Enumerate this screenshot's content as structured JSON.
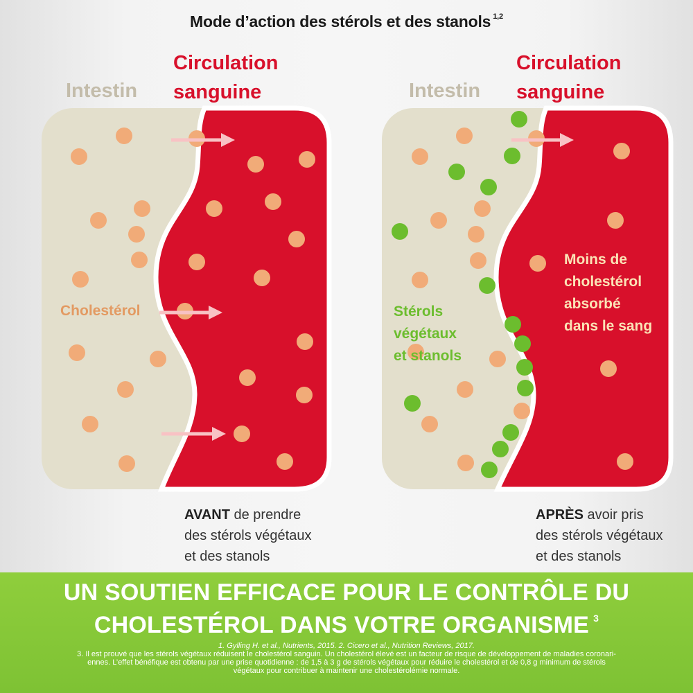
{
  "title": {
    "text": "Mode d’action des stérols et des stanols",
    "sup": "1,2"
  },
  "panels": [
    {
      "intestin": "Intestin",
      "circulation": [
        "Circulation",
        "sanguine"
      ],
      "inner_label": "Cholestérol",
      "caption": {
        "bold": "AVANT",
        "line1_rest": " de prendre",
        "line2": "des stérols végétaux",
        "line3": "et des stanols"
      }
    },
    {
      "intestin": "Intestin",
      "circulation": [
        "Circulation",
        "sanguine"
      ],
      "inner_label": [
        "Stérols",
        "végétaux",
        "et stanols"
      ],
      "right_text": [
        "Moins de",
        "cholestérol",
        "absorbé",
        "dans le sang"
      ],
      "caption": {
        "bold": "APRÈS",
        "line1_rest": " avoir pris",
        "line2": "des stérols végétaux",
        "line3": "et des stanols"
      }
    }
  ],
  "banner": {
    "line1": "UN SOUTIEN EFFICACE POUR LE CONTRÔLE DU",
    "line2": "CHOLESTÉROL DANS VOTRE ORGANISME",
    "sup": "3"
  },
  "footnotes": {
    "refs": "1. Gylling H. et al., Nutrients, 2015. 2. Cicero et al., Nutrition Reviews, 2017.",
    "note_line1": "3. Il est prouvé que les stérols végétaux réduisent le cholestérol sanguin. Un cholestérol élevé est un facteur de risque de développement de maladies coronari-",
    "note_line2": "ennes. L’effet bénéfique est obtenu par une prise quotidienne : de 1,5 à 3 g de stérols végétaux pour réduire le cholestérol et de 0,8 g minimum de stérols",
    "note_line3": "végétaux pour contribuer à maintenir une cholestérolémie normale."
  },
  "colors": {
    "intestin_bg": "#e3dfcc",
    "blood": "#d8102b",
    "cholesterol_dot": "#f1ab78",
    "sterol_dot": "#6cbd2e",
    "cholesterol_text": "#e39a62",
    "sterol_text": "#6cbd2e",
    "right_text": "#fbe3b6",
    "banner": "#84c638",
    "arrow": "#f8c2c4"
  }
}
